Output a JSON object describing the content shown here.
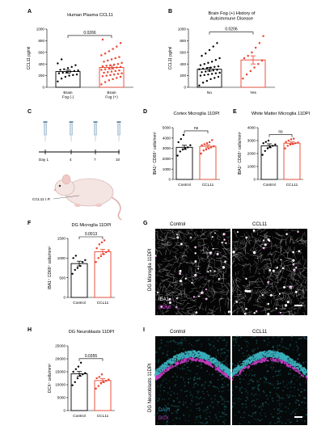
{
  "colors": {
    "control": "#000000",
    "treated": "#e8432e",
    "iba1": "#ffffff",
    "cd68": "#d43fd0",
    "dapi": "#2a8f9c",
    "dcx": "#c43bc0"
  },
  "panels": {
    "A": {
      "letter": "A"
    },
    "B": {
      "letter": "B"
    },
    "C": {
      "letter": "C",
      "days": [
        "Day 1",
        "4",
        "7",
        "10"
      ],
      "label": "CCL11 I.P."
    },
    "D": {
      "letter": "D"
    },
    "E": {
      "letter": "E"
    },
    "F": {
      "letter": "F"
    },
    "G": {
      "letter": "G",
      "col1": "Control",
      "col2": "CCL11",
      "side": "DG Microglia 11DPI",
      "legend1": "IBA1",
      "legend2": "CD68"
    },
    "H": {
      "letter": "H"
    },
    "I": {
      "letter": "I",
      "col1": "Control",
      "col2": "CCL11",
      "side": "DG Neuroblasts 11DPI",
      "legend1": "DAPI",
      "legend2": "DCX"
    }
  },
  "chart_data": [
    {
      "id": "A",
      "type": "bar",
      "title": [
        "Human Plasma CCL11"
      ],
      "ylabel": "CCL11 pg/ml",
      "ylim": [
        0,
        1000
      ],
      "yticks": [
        0,
        200,
        400,
        600,
        800,
        1000
      ],
      "categories": [
        [
          "Brain",
          "Fog (-)"
        ],
        [
          "Brain",
          "Fog (+)"
        ]
      ],
      "values": [
        270,
        340
      ],
      "errors": [
        25,
        25
      ],
      "points": [
        [
          100,
          150,
          180,
          200,
          210,
          220,
          240,
          250,
          260,
          270,
          280,
          290,
          300,
          310,
          330,
          350,
          380,
          410,
          480
        ],
        [
          50,
          90,
          120,
          140,
          160,
          180,
          190,
          200,
          210,
          220,
          230,
          240,
          250,
          260,
          270,
          280,
          290,
          300,
          310,
          320,
          330,
          340,
          350,
          360,
          370,
          380,
          390,
          400,
          420,
          440,
          460,
          480,
          500,
          520,
          550,
          580,
          620,
          660,
          700,
          760,
          820
        ]
      ],
      "significance": "0.0266"
    },
    {
      "id": "B",
      "type": "bar",
      "title": [
        "Brain Fog (+) History of",
        "Autoimmune Disease"
      ],
      "ylabel": "CCL11 pg/ml",
      "ylim": [
        0,
        1000
      ],
      "yticks": [
        0,
        200,
        400,
        600,
        800,
        1000
      ],
      "categories": [
        [
          "No"
        ],
        [
          "Yes"
        ]
      ],
      "values": [
        310,
        470
      ],
      "errors": [
        30,
        70
      ],
      "points": [
        [
          30,
          80,
          110,
          140,
          160,
          180,
          200,
          210,
          220,
          230,
          240,
          250,
          260,
          270,
          280,
          290,
          300,
          310,
          320,
          330,
          340,
          350,
          360,
          380,
          400,
          420,
          440,
          470,
          500,
          540,
          580,
          640,
          700,
          760
        ],
        [
          150,
          220,
          280,
          340,
          400,
          460,
          500,
          540,
          600,
          680,
          760,
          880
        ]
      ],
      "significance": "0.0206"
    },
    {
      "id": "D",
      "type": "bar",
      "title": [
        "Cortex Microglia 11DPI"
      ],
      "ylabel": "IBA1⁺ CD68⁺ cells/mm³",
      "ylim": [
        0,
        5000
      ],
      "yticks": [
        0,
        1000,
        2000,
        3000,
        4000,
        5000
      ],
      "categories": [
        [
          "Control"
        ],
        [
          "CCL11"
        ]
      ],
      "values": [
        3100,
        3200
      ],
      "errors": [
        200,
        150
      ],
      "points": [
        [
          2300,
          2700,
          2900,
          3000,
          3100,
          3300,
          3600,
          3900,
          4300
        ],
        [
          2500,
          2800,
          2900,
          3000,
          3100,
          3200,
          3300,
          3400,
          3500,
          3600,
          3800
        ]
      ],
      "significance": "ns"
    },
    {
      "id": "E",
      "type": "bar",
      "title": [
        "White Matter Microglia 11DPI"
      ],
      "ylabel": "IBA1⁺ CD68⁺ cells/mm³",
      "ylim": [
        0,
        4000
      ],
      "yticks": [
        0,
        1000,
        2000,
        3000,
        4000
      ],
      "categories": [
        [
          "Control"
        ],
        [
          "CCL11"
        ]
      ],
      "values": [
        2600,
        2800
      ],
      "errors": [
        150,
        100
      ],
      "points": [
        [
          1900,
          2200,
          2400,
          2500,
          2600,
          2700,
          2800,
          2900,
          3000
        ],
        [
          2400,
          2600,
          2700,
          2750,
          2800,
          2850,
          2900,
          3000,
          3100,
          3150
        ]
      ],
      "significance": "ns"
    },
    {
      "id": "F",
      "type": "bar",
      "title": [
        "DG Microglia 11DPI"
      ],
      "ylabel": "IBA1⁺ CD68⁺ cells/mm³",
      "ylim": [
        0,
        1500
      ],
      "yticks": [
        0,
        500,
        1000,
        1500
      ],
      "categories": [
        [
          "Control"
        ],
        [
          "CCL11"
        ]
      ],
      "values": [
        860,
        1160
      ],
      "errors": [
        60,
        60
      ],
      "points": [
        [
          600,
          700,
          750,
          800,
          900,
          950,
          1000,
          1060
        ],
        [
          900,
          1000,
          1050,
          1100,
          1150,
          1200,
          1250,
          1350,
          1400,
          1450
        ]
      ],
      "significance": "0.0013"
    },
    {
      "id": "H",
      "type": "bar",
      "title": [
        "DG Neuroblasts 11DPI"
      ],
      "ylabel": "DCX⁺ cells/mm³",
      "ylim": [
        0,
        25000
      ],
      "yticks": [
        0,
        5000,
        10000,
        15000,
        20000,
        25000
      ],
      "categories": [
        [
          "Control"
        ],
        [
          "CCL11"
        ]
      ],
      "values": [
        14200,
        11600
      ],
      "errors": [
        900,
        700
      ],
      "points": [
        [
          9800,
          11000,
          12500,
          13500,
          14000,
          14500,
          15000,
          16000,
          17000,
          18500
        ],
        [
          8500,
          9500,
          10500,
          11000,
          11500,
          12000,
          12500,
          13000,
          14000
        ]
      ],
      "significance": "0.0355"
    }
  ]
}
